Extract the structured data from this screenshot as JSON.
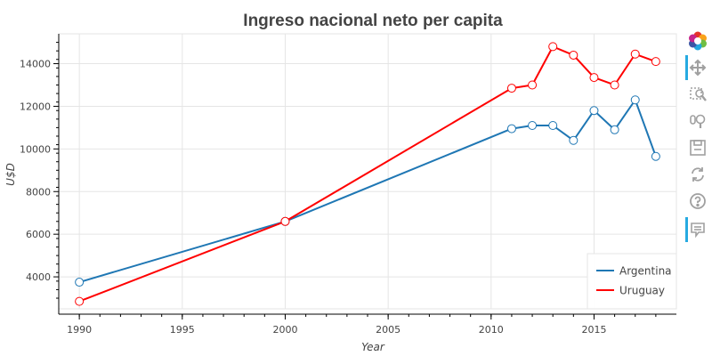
{
  "chart_data": {
    "type": "line",
    "title": "Ingreso nacional neto per capita",
    "xlabel": "Year",
    "ylabel": "U$D",
    "xlim": [
      1989,
      2019
    ],
    "ylim": [
      2500,
      15400
    ],
    "x_ticks": [
      1990,
      1995,
      2000,
      2005,
      2010,
      2015
    ],
    "y_ticks": [
      4000,
      6000,
      8000,
      10000,
      12000,
      14000
    ],
    "grid": true,
    "legend_position": "bottom-right",
    "series": [
      {
        "name": "Argentina",
        "color": "#1f77b4",
        "x": [
          1990,
          2000,
          2011,
          2012,
          2013,
          2014,
          2015,
          2016,
          2017,
          2018
        ],
        "y": [
          3750,
          6600,
          10950,
          11100,
          11100,
          10400,
          11800,
          10900,
          12300,
          9650
        ]
      },
      {
        "name": "Uruguay",
        "color": "#ff0000",
        "x": [
          1990,
          2000,
          2011,
          2012,
          2013,
          2014,
          2015,
          2016,
          2017,
          2018
        ],
        "y": [
          2850,
          6600,
          12850,
          13000,
          14800,
          14400,
          13350,
          13000,
          14450,
          14100
        ]
      }
    ]
  },
  "toolbar": {
    "items": [
      {
        "icon": "bokeh-logo-icon"
      },
      {
        "icon": "pan-icon"
      },
      {
        "icon": "box-zoom-icon"
      },
      {
        "icon": "wheel-zoom-icon"
      },
      {
        "icon": "save-icon"
      },
      {
        "icon": "reset-icon"
      },
      {
        "icon": "help-icon"
      },
      {
        "icon": "hover-icon"
      }
    ]
  }
}
